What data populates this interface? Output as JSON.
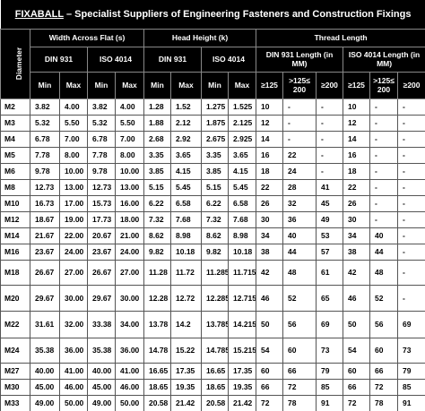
{
  "title": {
    "brand": "FIXABALL",
    "text": "– Specialist Suppliers of Engineering Fasteners and Construction Fixings"
  },
  "header": {
    "diameter": "Diameter",
    "groups": [
      "Width Across Flat (s)",
      "Head Height (k)",
      "Thread Length"
    ],
    "standards": [
      "DIN 931",
      "ISO 4014",
      "DIN 931",
      "ISO 4014",
      "DIN 931 Length (in MM)",
      "ISO 4014 Length (in MM)"
    ],
    "sub": [
      "Min",
      "Max",
      "Min",
      "Max",
      "Min",
      "Max",
      "Min",
      "Max",
      "≥125",
      ">125≤ 200",
      "≥200",
      "≥125",
      ">125≤ 200",
      "≥200"
    ]
  },
  "rows": [
    [
      "M2",
      "3.82",
      "4.00",
      "3.82",
      "4.00",
      "1.28",
      "1.52",
      "1.275",
      "1.525",
      "10",
      "-",
      "-",
      "10",
      "-",
      "-"
    ],
    [
      "M3",
      "5.32",
      "5.50",
      "5.32",
      "5.50",
      "1.88",
      "2.12",
      "1.875",
      "2.125",
      "12",
      "-",
      "-",
      "12",
      "-",
      "-"
    ],
    [
      "M4",
      "6.78",
      "7.00",
      "6.78",
      "7.00",
      "2.68",
      "2.92",
      "2.675",
      "2.925",
      "14",
      "-",
      "-",
      "14",
      "-",
      "-"
    ],
    [
      "M5",
      "7.78",
      "8.00",
      "7.78",
      "8.00",
      "3.35",
      "3.65",
      "3.35",
      "3.65",
      "16",
      "22",
      "-",
      "16",
      "-",
      "-"
    ],
    [
      "M6",
      "9.78",
      "10.00",
      "9.78",
      "10.00",
      "3.85",
      "4.15",
      "3.85",
      "4.15",
      "18",
      "24",
      "-",
      "18",
      "-",
      "-"
    ],
    [
      "M8",
      "12.73",
      "13.00",
      "12.73",
      "13.00",
      "5.15",
      "5.45",
      "5.15",
      "5.45",
      "22",
      "28",
      "41",
      "22",
      "-",
      "-"
    ],
    [
      "M10",
      "16.73",
      "17.00",
      "15.73",
      "16.00",
      "6.22",
      "6.58",
      "6.22",
      "6.58",
      "26",
      "32",
      "45",
      "26",
      "-",
      "-"
    ],
    [
      "M12",
      "18.67",
      "19.00",
      "17.73",
      "18.00",
      "7.32",
      "7.68",
      "7.32",
      "7.68",
      "30",
      "36",
      "49",
      "30",
      "-",
      "-"
    ],
    [
      "M14",
      "21.67",
      "22.00",
      "20.67",
      "21.00",
      "8.62",
      "8.98",
      "8.62",
      "8.98",
      "34",
      "40",
      "53",
      "34",
      "40",
      "-"
    ],
    [
      "M16",
      "23.67",
      "24.00",
      "23.67",
      "24.00",
      "9.82",
      "10.18",
      "9.82",
      "10.18",
      "38",
      "44",
      "57",
      "38",
      "44",
      "-"
    ],
    [
      "M18",
      "26.67",
      "27.00",
      "26.67",
      "27.00",
      "11.28",
      "11.72",
      "11.285",
      "11.715",
      "42",
      "48",
      "61",
      "42",
      "48",
      "-"
    ],
    [
      "M20",
      "29.67",
      "30.00",
      "29.67",
      "30.00",
      "12.28",
      "12.72",
      "12.285",
      "12.715",
      "46",
      "52",
      "65",
      "46",
      "52",
      "-"
    ],
    [
      "M22",
      "31.61",
      "32.00",
      "33.38",
      "34.00",
      "13.78",
      "14.2",
      "13.785",
      "14.215",
      "50",
      "56",
      "69",
      "50",
      "56",
      "69"
    ],
    [
      "M24",
      "35.38",
      "36.00",
      "35.38",
      "36.00",
      "14.78",
      "15.22",
      "14.785",
      "15.215",
      "54",
      "60",
      "73",
      "54",
      "60",
      "73"
    ],
    [
      "M27",
      "40.00",
      "41.00",
      "40.00",
      "41.00",
      "16.65",
      "17.35",
      "16.65",
      "17.35",
      "60",
      "66",
      "79",
      "60",
      "66",
      "79"
    ],
    [
      "M30",
      "45.00",
      "46.00",
      "45.00",
      "46.00",
      "18.65",
      "19.35",
      "18.65",
      "19.35",
      "66",
      "72",
      "85",
      "66",
      "72",
      "85"
    ],
    [
      "M33",
      "49.00",
      "50.00",
      "49.00",
      "50.00",
      "20.58",
      "21.42",
      "20.58",
      "21.42",
      "72",
      "78",
      "91",
      "72",
      "78",
      "91"
    ]
  ]
}
